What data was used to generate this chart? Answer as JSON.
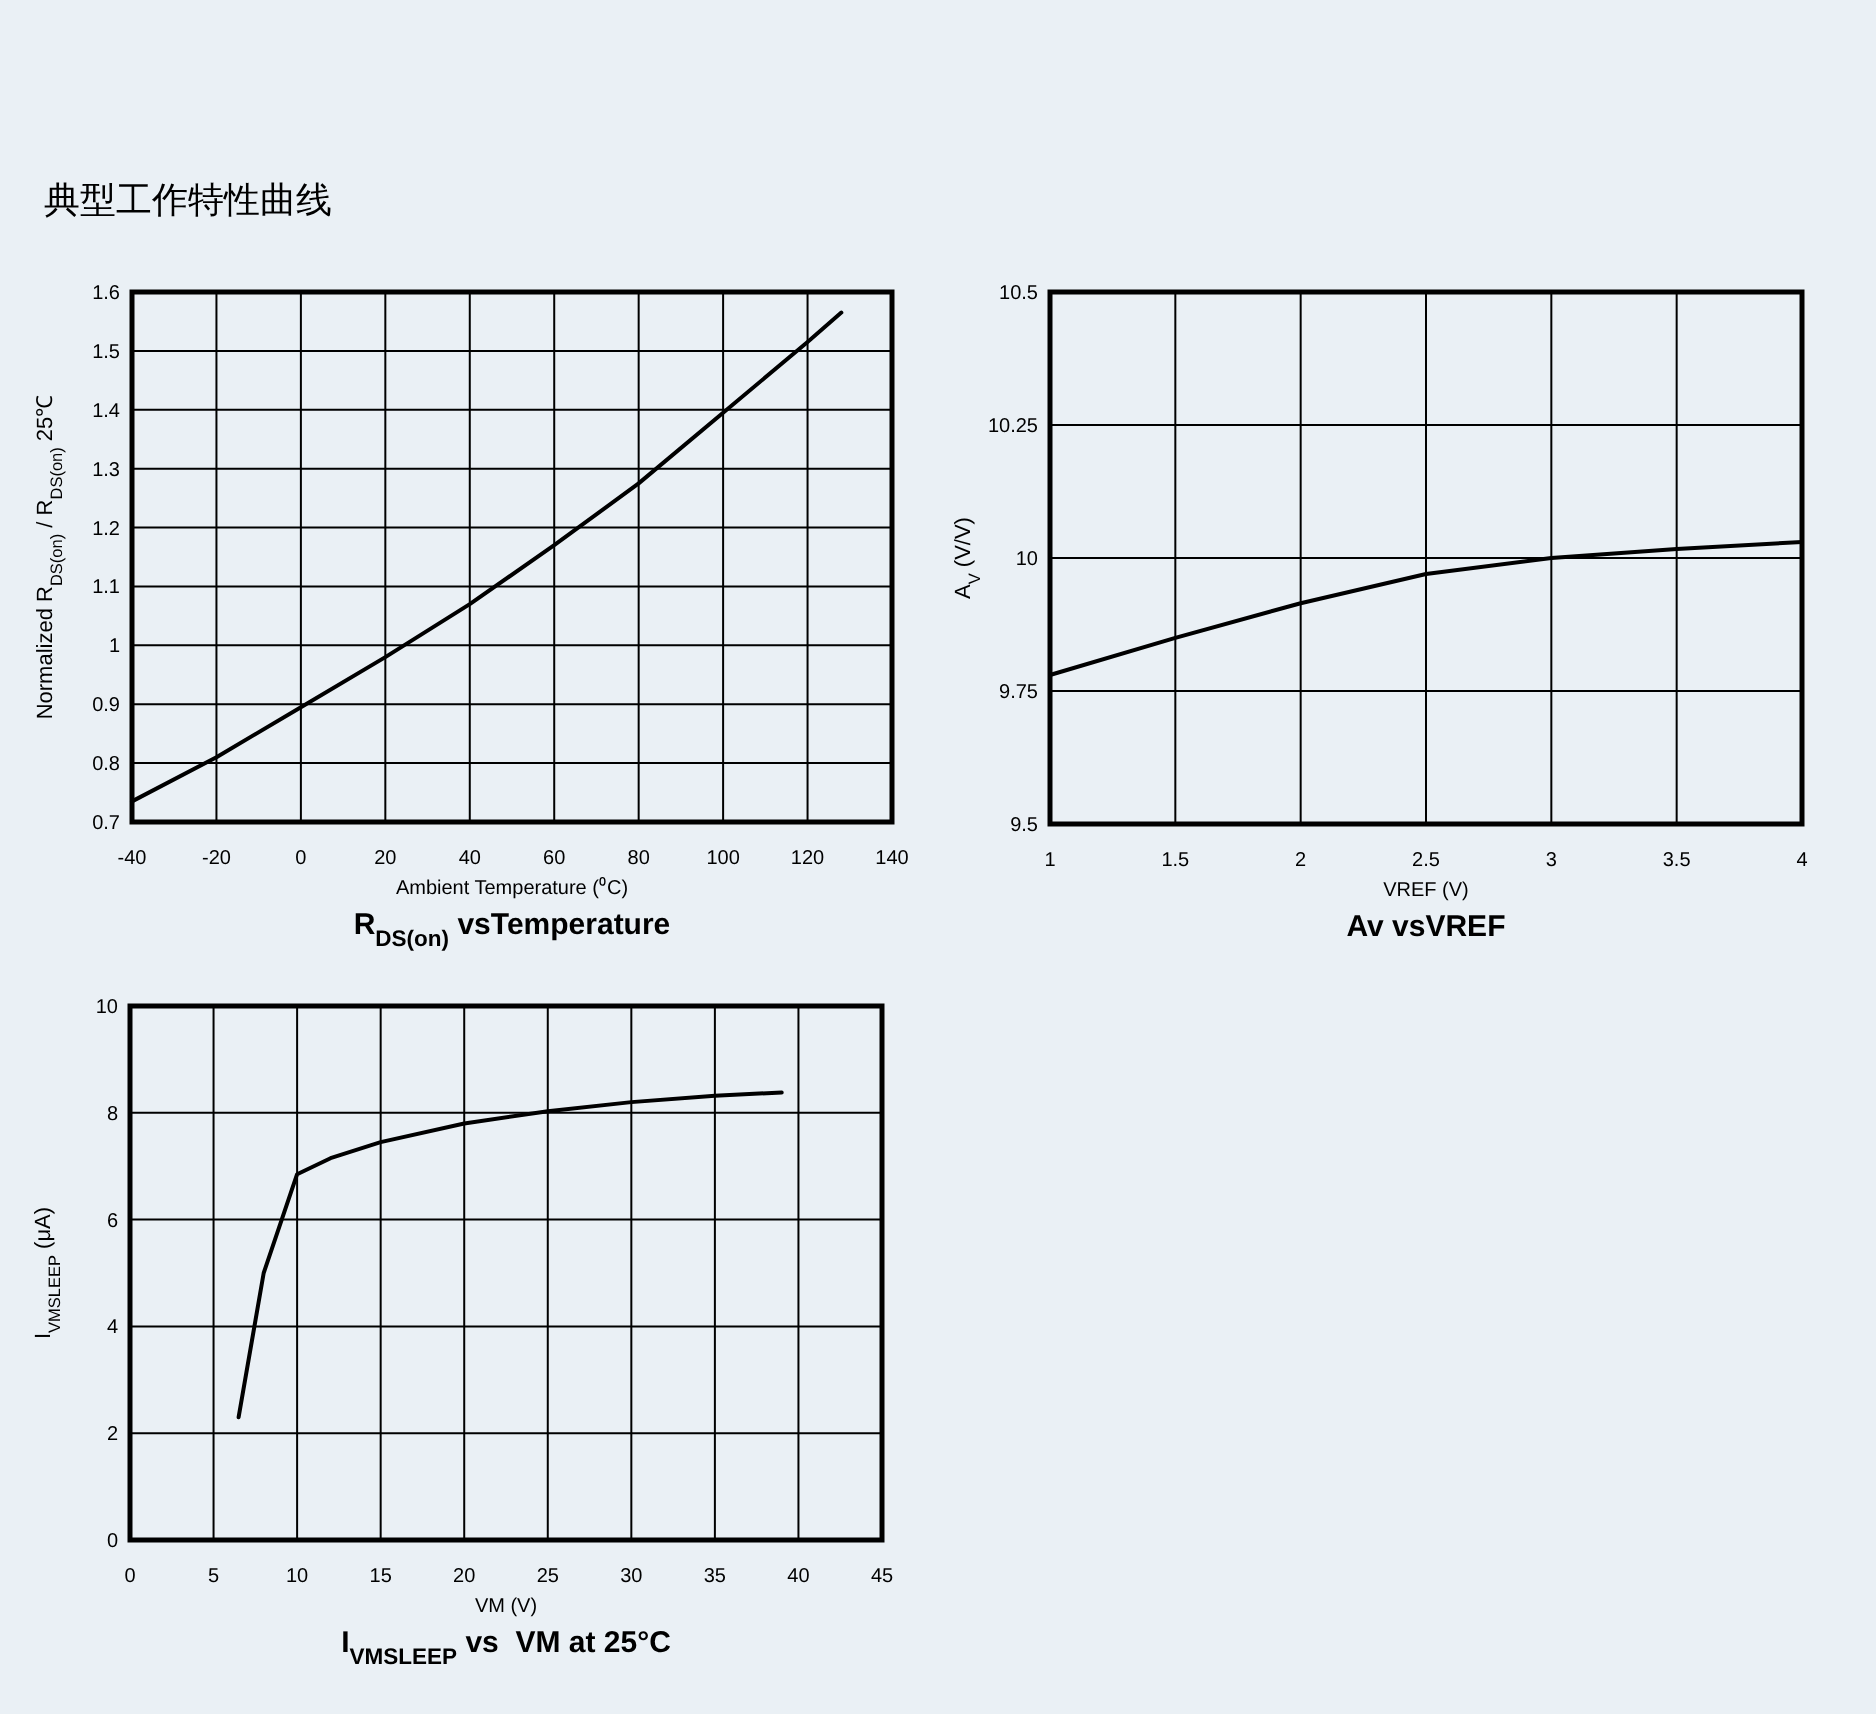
{
  "chart_data": [
    {
      "type": "line",
      "title": "R$_{DS(on)}$ vsTemperature",
      "xlabel": "Ambient Temperature (⁰C)",
      "ylabel": "Normalized R$_{DS(on)}$ / R$_{DS(on)}$ 25℃",
      "annotations": [
        "典型工作特性曲线"
      ],
      "x": [
        -40,
        -20,
        0,
        20,
        40,
        60,
        80,
        100,
        120,
        128
      ],
      "series": [
        {
          "color": "#000000",
          "values": [
            0.735,
            0.81,
            0.895,
            0.98,
            1.07,
            1.17,
            1.275,
            1.395,
            1.515,
            1.565
          ]
        }
      ],
      "xlim": [
        -40,
        140
      ],
      "xticks": [
        -40,
        -20,
        0,
        20,
        40,
        60,
        80,
        100,
        120,
        140
      ],
      "ylim": [
        0.7,
        1.6
      ],
      "yticks": [
        0.7,
        0.8,
        0.9,
        1,
        1.1,
        1.2,
        1.3,
        1.4,
        1.5,
        1.6
      ],
      "grid": true
    },
    {
      "type": "line",
      "title": "Av vsVREF",
      "xlabel": "VREF (V)",
      "ylabel": "A$_{V}$ (V/V)",
      "x": [
        1,
        1.5,
        2,
        2.5,
        3,
        3.5,
        4
      ],
      "series": [
        {
          "color": "#000000",
          "values": [
            9.78,
            9.85,
            9.915,
            9.97,
            10.0,
            10.017,
            10.03
          ]
        }
      ],
      "xlim": [
        1,
        4
      ],
      "xticks": [
        1,
        1.5,
        2,
        2.5,
        3,
        3.5,
        4
      ],
      "ylim": [
        9.5,
        10.5
      ],
      "yticks": [
        9.5,
        9.75,
        10,
        10.25,
        10.5
      ],
      "grid": true
    },
    {
      "type": "line",
      "title": "I$_{VMSLEEP}$ vs  VM at 25°C",
      "xlabel": "VM (V)",
      "ylabel": "I$_{VMSLEEP}$ (μA)",
      "x": [
        6.5,
        8,
        10,
        12,
        15,
        20,
        25,
        30,
        35,
        39
      ],
      "series": [
        {
          "color": "#000000",
          "values": [
            2.3,
            5.0,
            6.85,
            7.15,
            7.45,
            7.8,
            8.03,
            8.2,
            8.32,
            8.38
          ]
        }
      ],
      "xlim": [
        0,
        45
      ],
      "xticks": [
        0,
        5,
        10,
        15,
        20,
        25,
        30,
        35,
        40,
        45
      ],
      "ylim": [
        0,
        10
      ],
      "yticks": [
        0,
        2,
        4,
        6,
        8,
        10
      ],
      "grid": true
    }
  ]
}
